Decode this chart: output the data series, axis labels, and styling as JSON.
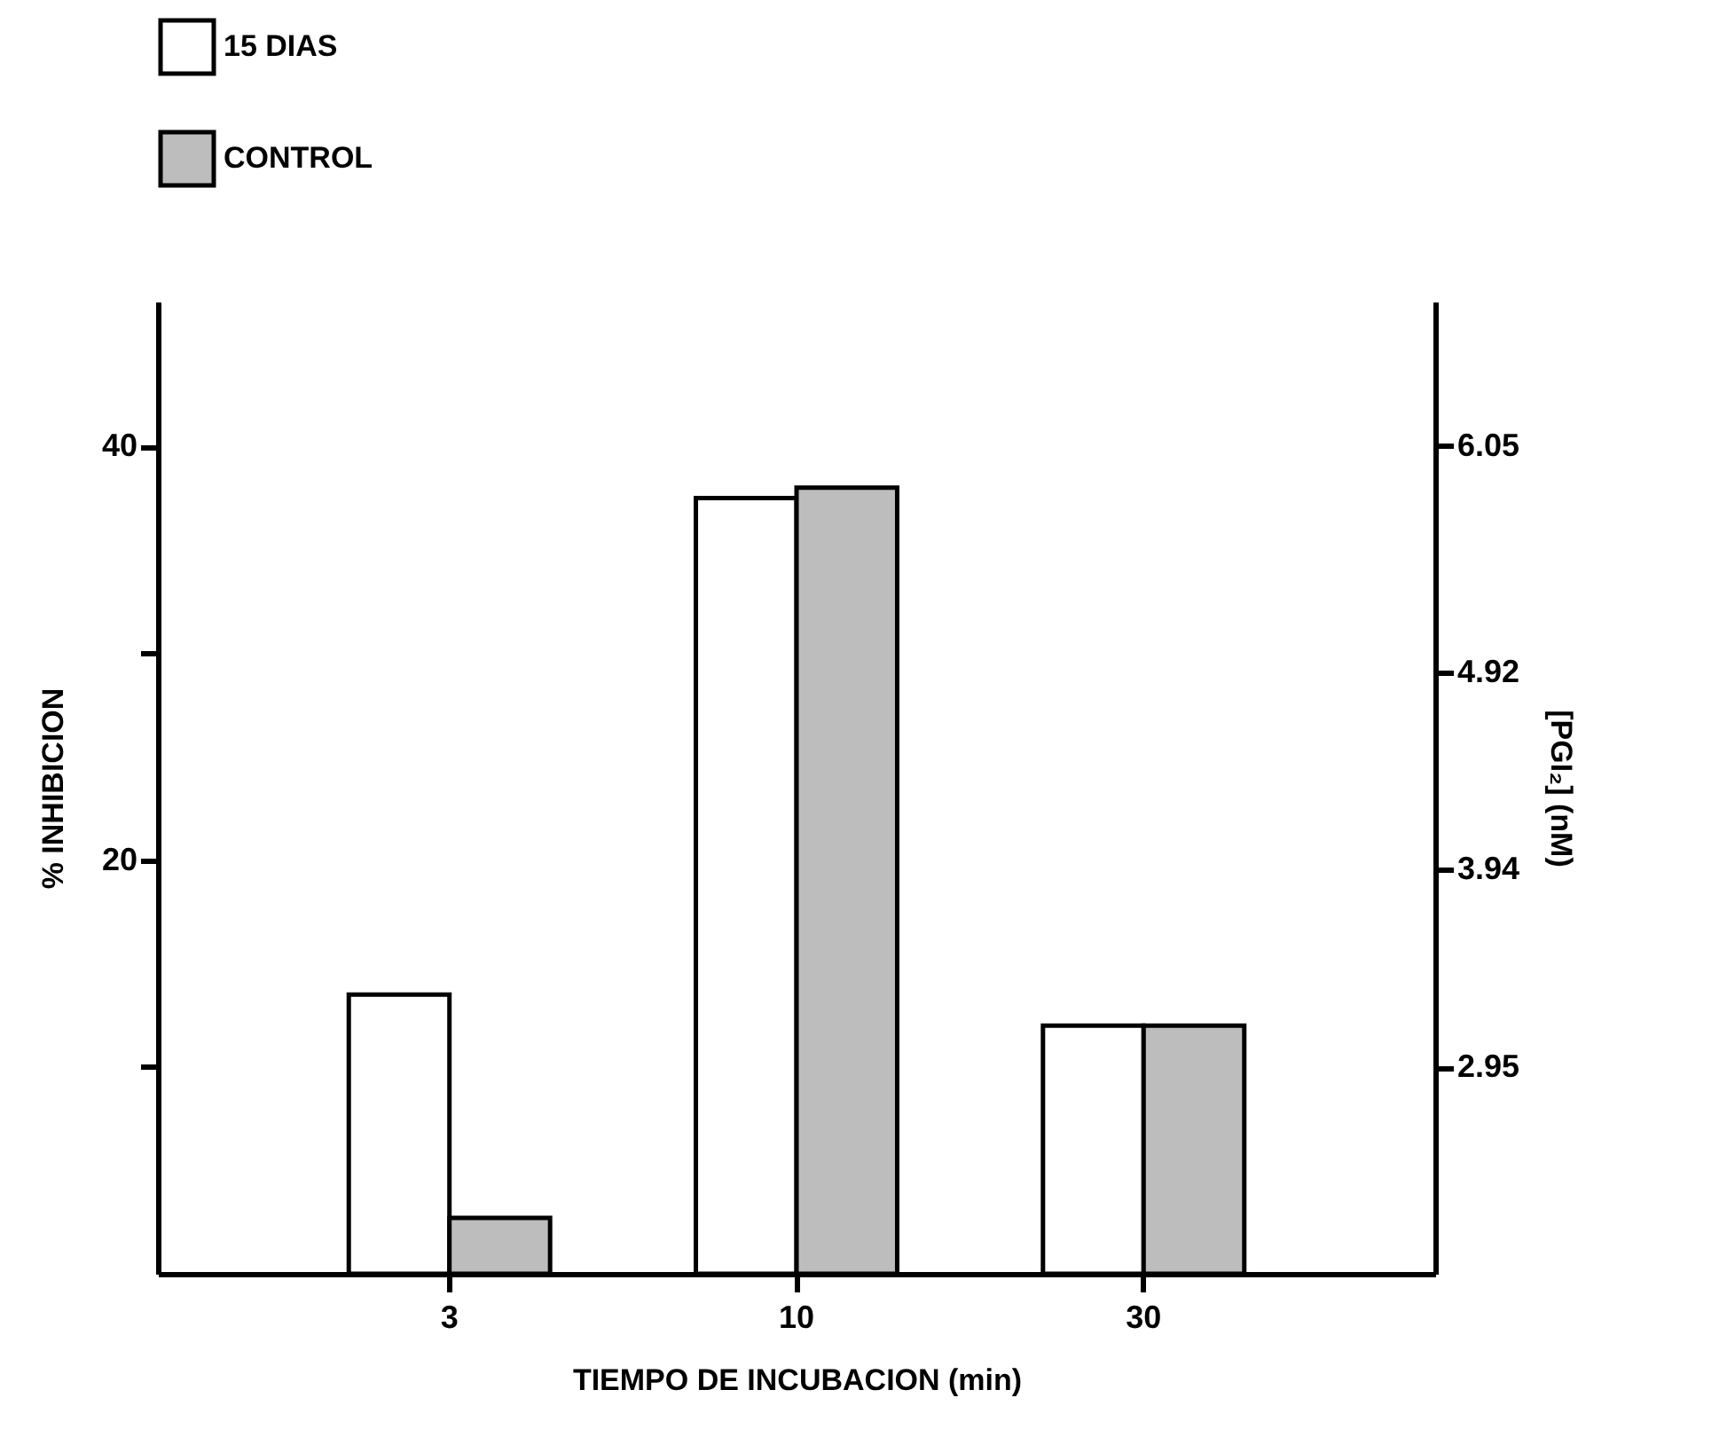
{
  "chart_data": {
    "type": "bar",
    "xlabel": "TIEMPO DE INCUBACION (min)",
    "ylabel": "% INHIBICION",
    "y2label": "[PGI₂] (nM)",
    "categories": [
      "3",
      "10",
      "30"
    ],
    "series": [
      {
        "name": "15 DIAS",
        "color": "#ffffff",
        "values": [
          13.5,
          37.5,
          12
        ]
      },
      {
        "name": "CONTROL",
        "color": "#bdbdbd",
        "values": [
          2.7,
          38,
          12
        ]
      }
    ],
    "ylim": [
      0,
      47
    ],
    "yticks": [
      {
        "value": 10,
        "label": null
      },
      20,
      {
        "value": 30,
        "label": null
      },
      40
    ],
    "y2lim": [
      1.92,
      6.77
    ],
    "y2ticks": [
      2.95,
      3.94,
      4.92,
      6.05
    ],
    "grid": false,
    "legend": "top left"
  }
}
